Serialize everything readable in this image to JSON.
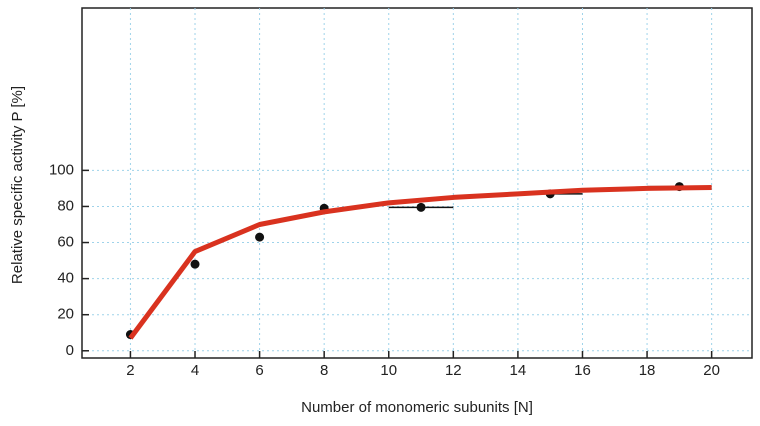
{
  "chart_data": {
    "type": "scatter",
    "x_label": "Number of monomeric subunits [N]",
    "y_label": "Relative specific activity P [%]",
    "xlim": [
      0.5,
      21.25
    ],
    "ylim": [
      -4,
      190
    ],
    "xticks": [
      2,
      4,
      6,
      8,
      10,
      12,
      14,
      16,
      18,
      20
    ],
    "yticks": [
      0,
      20,
      40,
      60,
      80,
      100
    ],
    "grid": true,
    "series": [
      {
        "mode": "markers",
        "color": "#111111",
        "x": [
          2,
          4,
          6,
          8,
          11,
          15,
          19
        ],
        "values": [
          9,
          48,
          63,
          79,
          79.5,
          87,
          91
        ],
        "xerr": [
          null,
          null,
          null,
          null,
          1,
          1,
          1
        ]
      },
      {
        "mode": "line",
        "color": "#d9321f",
        "x": [
          2,
          4,
          6,
          8,
          10,
          12,
          14,
          16,
          18,
          20
        ],
        "values": [
          7,
          55,
          70,
          77,
          82,
          85,
          87,
          89,
          90,
          90.5
        ]
      }
    ]
  }
}
